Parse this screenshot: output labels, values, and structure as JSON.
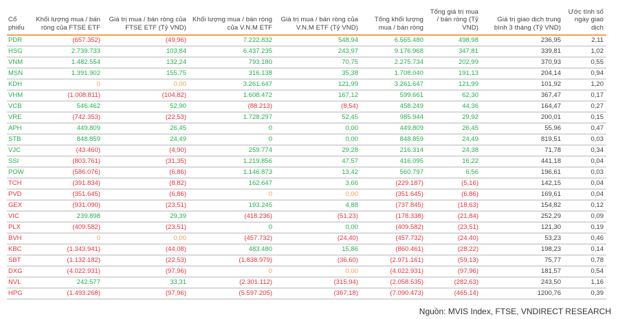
{
  "headers": [
    "Cổ phiếu",
    "Khối lượng mua / bán ròng của FTSE ETF",
    "Giá trị mua / bán ròng của FTSE ETF (Tỷ VND)",
    "Khối lượng mua / bán ròng của V.N.M ETF",
    "Giá trị mua / bán ròng của V.N.M ETF (Tỷ VND)",
    "Tổng khối lượng mua / bán ròng",
    "Tổng giá trị mua / bán ròng (Tỷ VND)",
    "Giá trị giao dịch trung bình 3 tháng (Tỷ VND)",
    "Ước tính số ngày giao dịch"
  ],
  "colors": {
    "positive": "#21b24b",
    "negative": "#e8323a",
    "zero": "#f5a04a",
    "neutral": "#404040",
    "header_rule": "#f5a04a",
    "row_rule": "#d9d9d9"
  },
  "rows": [
    {
      "ticker": "PDR",
      "t": "pos",
      "v": [
        "(657.352)",
        "(49,96)",
        "7.222.832",
        "548,94",
        "6.565.480",
        "498,98",
        "236,95",
        "2,11"
      ],
      "c": [
        "neg",
        "neg",
        "pos",
        "pos",
        "pos",
        "pos"
      ]
    },
    {
      "ticker": "HSG",
      "t": "pos",
      "v": [
        "2.739.733",
        "103,84",
        "6.437.235",
        "243,97",
        "9.176.968",
        "347,81",
        "339,81",
        "1,02"
      ],
      "c": [
        "pos",
        "pos",
        "pos",
        "pos",
        "pos",
        "pos"
      ]
    },
    {
      "ticker": "VNM",
      "t": "pos",
      "v": [
        "1.482.554",
        "132,24",
        "793.180",
        "70,75",
        "2.275.734",
        "202,99",
        "370,93",
        "0,55"
      ],
      "c": [
        "pos",
        "pos",
        "pos",
        "pos",
        "pos",
        "pos"
      ]
    },
    {
      "ticker": "MSN",
      "t": "pos",
      "v": [
        "1.391.902",
        "155,75",
        "316.138",
        "35,38",
        "1.708.040",
        "191,13",
        "204,14",
        "0,94"
      ],
      "c": [
        "pos",
        "pos",
        "pos",
        "pos",
        "pos",
        "pos"
      ]
    },
    {
      "ticker": "KDH",
      "t": "pos",
      "v": [
        "0",
        "0,00",
        "3.261.647",
        "121,99",
        "3.261.647",
        "121,99",
        "101,92",
        "1,20"
      ],
      "c": [
        "zero",
        "zero",
        "pos",
        "pos",
        "pos",
        "pos"
      ]
    },
    {
      "ticker": "VHM",
      "t": "pos",
      "v": [
        "(1.008.811)",
        "(104,82)",
        "1.608.472",
        "167,12",
        "599.661",
        "62,30",
        "367,47",
        "0,17"
      ],
      "c": [
        "neg",
        "neg",
        "pos",
        "pos",
        "pos",
        "pos"
      ]
    },
    {
      "ticker": "VCB",
      "t": "pos",
      "v": [
        "546.462",
        "52,90",
        "(88.213)",
        "(8,54)",
        "458.249",
        "44,36",
        "164,47",
        "0,27"
      ],
      "c": [
        "pos",
        "pos",
        "neg",
        "neg",
        "pos",
        "pos"
      ]
    },
    {
      "ticker": "VRE",
      "t": "pos",
      "v": [
        "(742.353)",
        "(22,53)",
        "1.728.297",
        "52,45",
        "985.944",
        "29,92",
        "200,01",
        "0,15"
      ],
      "c": [
        "neg",
        "neg",
        "pos",
        "pos",
        "pos",
        "pos"
      ]
    },
    {
      "ticker": "APH",
      "t": "pos",
      "v": [
        "449.809",
        "26,45",
        "0",
        "0,00",
        "449.809",
        "26,45",
        "55,96",
        "0,47"
      ],
      "c": [
        "pos",
        "pos",
        "pos",
        "pos",
        "pos",
        "pos"
      ]
    },
    {
      "ticker": "STB",
      "t": "pos",
      "v": [
        "848.859",
        "24,49",
        "0",
        "0,00",
        "848.859",
        "24,49",
        "819,51",
        "0,03"
      ],
      "c": [
        "pos",
        "pos",
        "pos",
        "pos",
        "pos",
        "pos"
      ]
    },
    {
      "ticker": "VJC",
      "t": "pos",
      "v": [
        "(43.460)",
        "(4,90)",
        "259.774",
        "29,28",
        "216.314",
        "24,38",
        "71,78",
        "0,34"
      ],
      "c": [
        "neg",
        "neg",
        "pos",
        "pos",
        "pos",
        "pos"
      ]
    },
    {
      "ticker": "SSI",
      "t": "pos",
      "v": [
        "(803.761)",
        "(31,35)",
        "1.219.856",
        "47,57",
        "416.095",
        "16,22",
        "441,18",
        "0,04"
      ],
      "c": [
        "neg",
        "neg",
        "pos",
        "pos",
        "pos",
        "pos"
      ]
    },
    {
      "ticker": "POW",
      "t": "pos",
      "v": [
        "(586.076)",
        "(6,86)",
        "1.146.873",
        "13,42",
        "560.797",
        "6,56",
        "196,61",
        "0,03"
      ],
      "c": [
        "neg",
        "neg",
        "pos",
        "pos",
        "pos",
        "pos"
      ]
    },
    {
      "ticker": "TCH",
      "t": "neg",
      "v": [
        "(391.834)",
        "(8,82)",
        "162.647",
        "3,66",
        "(229.187)",
        "(5,16)",
        "142,15",
        "0,04"
      ],
      "c": [
        "neg",
        "neg",
        "pos",
        "pos",
        "neg",
        "neg"
      ]
    },
    {
      "ticker": "PVD",
      "t": "neg",
      "v": [
        "(351.645)",
        "(6,86)",
        "0",
        "0,00",
        "(351.645)",
        "(6,86)",
        "169,61",
        "0,04"
      ],
      "c": [
        "neg",
        "neg",
        "zero",
        "zero",
        "neg",
        "neg"
      ]
    },
    {
      "ticker": "GEX",
      "t": "neg",
      "v": [
        "(931.090)",
        "(23,51)",
        "193.245",
        "4,88",
        "(737.845)",
        "(18,63)",
        "154,82",
        "0,12"
      ],
      "c": [
        "neg",
        "neg",
        "pos",
        "pos",
        "neg",
        "neg"
      ]
    },
    {
      "ticker": "VIC",
      "t": "neg",
      "v": [
        "239.898",
        "29,39",
        "(418.236)",
        "(51,23)",
        "(178.338)",
        "(21,84)",
        "252,29",
        "0,09"
      ],
      "c": [
        "pos",
        "pos",
        "neg",
        "neg",
        "neg",
        "neg"
      ]
    },
    {
      "ticker": "PLX",
      "t": "neg",
      "v": [
        "(409.582)",
        "(23,51)",
        "0",
        "0,00",
        "(409.582)",
        "(23,51)",
        "121,30",
        "0,19"
      ],
      "c": [
        "neg",
        "neg",
        "pos",
        "pos",
        "neg",
        "neg"
      ]
    },
    {
      "ticker": "BVH",
      "t": "neg",
      "v": [
        "0",
        "0,00",
        "(457.732)",
        "(24,40)",
        "(457.732)",
        "(24,40)",
        "53,23",
        "0,46"
      ],
      "c": [
        "zero",
        "zero",
        "neg",
        "neg",
        "neg",
        "neg"
      ]
    },
    {
      "ticker": "KBC",
      "t": "neg",
      "v": [
        "(1.343.941)",
        "(44,08)",
        "483.480",
        "15,86",
        "(860.461)",
        "(28,22)",
        "198,23",
        "0,14"
      ],
      "c": [
        "neg",
        "neg",
        "pos",
        "pos",
        "neg",
        "neg"
      ]
    },
    {
      "ticker": "SBT",
      "t": "neg",
      "v": [
        "(1.132.182)",
        "(22,53)",
        "(1.838.979)",
        "(36,60)",
        "(2.971.161)",
        "(59,13)",
        "75,77",
        "0,78"
      ],
      "c": [
        "neg",
        "neg",
        "neg",
        "neg",
        "neg",
        "neg"
      ]
    },
    {
      "ticker": "DXG",
      "t": "neg",
      "v": [
        "(4.022.931)",
        "(97,96)",
        "0",
        "0,00",
        "(4.022.931)",
        "(97,96)",
        "181,57",
        "0,54"
      ],
      "c": [
        "neg",
        "neg",
        "zero",
        "zero",
        "neg",
        "neg"
      ]
    },
    {
      "ticker": "NVL",
      "t": "neg",
      "v": [
        "242.577",
        "33,31",
        "(2.301.112)",
        "(315,94)",
        "(2.058.535)",
        "(282,63)",
        "243,50",
        "1,16"
      ],
      "c": [
        "pos",
        "pos",
        "neg",
        "neg",
        "neg",
        "neg"
      ]
    },
    {
      "ticker": "HPG",
      "t": "neg",
      "v": [
        "(1.493.268)",
        "(97,96)",
        "(5.597.205)",
        "(367,18)",
        "(7.090.473)",
        "(465,14)",
        "1200,76",
        "0,39"
      ],
      "c": [
        "neg",
        "neg",
        "neg",
        "neg",
        "neg",
        "neg"
      ]
    }
  ],
  "source": "Nguồn: MVIS Index, FTSE, VNDIRECT RESEARCH"
}
